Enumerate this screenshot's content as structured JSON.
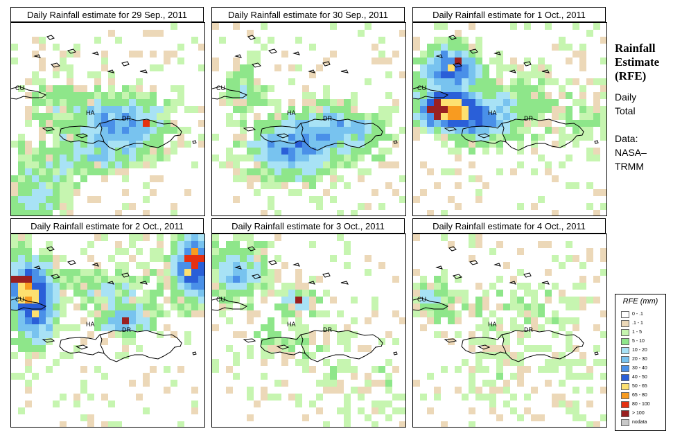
{
  "panels": [
    {
      "title": "Daily Rainfall estimate for  29 Sep., 2011",
      "rain_pattern": "central-band-and-southwest"
    },
    {
      "title": "Daily Rainfall estimate for  30 Sep., 2011",
      "rain_pattern": "south-central-blob"
    },
    {
      "title": "Daily Rainfall estimate for  1 Oct., 2011",
      "rain_pattern": "northwest-heavy"
    },
    {
      "title": "Daily Rainfall estimate for  2 Oct., 2011",
      "rain_pattern": "east-and-west-heavy"
    },
    {
      "title": "Daily Rainfall estimate for  3 Oct., 2011",
      "rain_pattern": "northwest-light"
    },
    {
      "title": "Daily Rainfall estimate for  4 Oct., 2011",
      "rain_pattern": "mostly-dry"
    }
  ],
  "map_labels": {
    "cuba": "CU",
    "haiti": "HA",
    "dominican_republic": "DR"
  },
  "side_title": [
    "Rainfall",
    "Estimate",
    "(RFE)"
  ],
  "side_period": [
    "Daily",
    "Total"
  ],
  "side_source": [
    "Data:",
    "NASA–",
    "TRMM"
  ],
  "legend": {
    "title": "RFE (mm)",
    "items": [
      {
        "label": "0 - .1",
        "color": "#ffffff"
      },
      {
        "label": ".1 - 1",
        "color": "#ecd8b8"
      },
      {
        "label": "1 - 5",
        "color": "#c6f5b0"
      },
      {
        "label": "5 - 10",
        "color": "#8ee68a"
      },
      {
        "label": "10 - 20",
        "color": "#a8e2f5"
      },
      {
        "label": "20 - 30",
        "color": "#78c3ef"
      },
      {
        "label": "30 - 40",
        "color": "#4a90e8"
      },
      {
        "label": "40 - 50",
        "color": "#2a5fd8"
      },
      {
        "label": "50 - 65",
        "color": "#fde070"
      },
      {
        "label": "65 - 80",
        "color": "#f89b20"
      },
      {
        "label": "80 - 100",
        "color": "#e53010"
      },
      {
        "label": "> 100",
        "color": "#9a2020"
      },
      {
        "label": "nodata",
        "color": "#c8c8c8"
      }
    ]
  }
}
